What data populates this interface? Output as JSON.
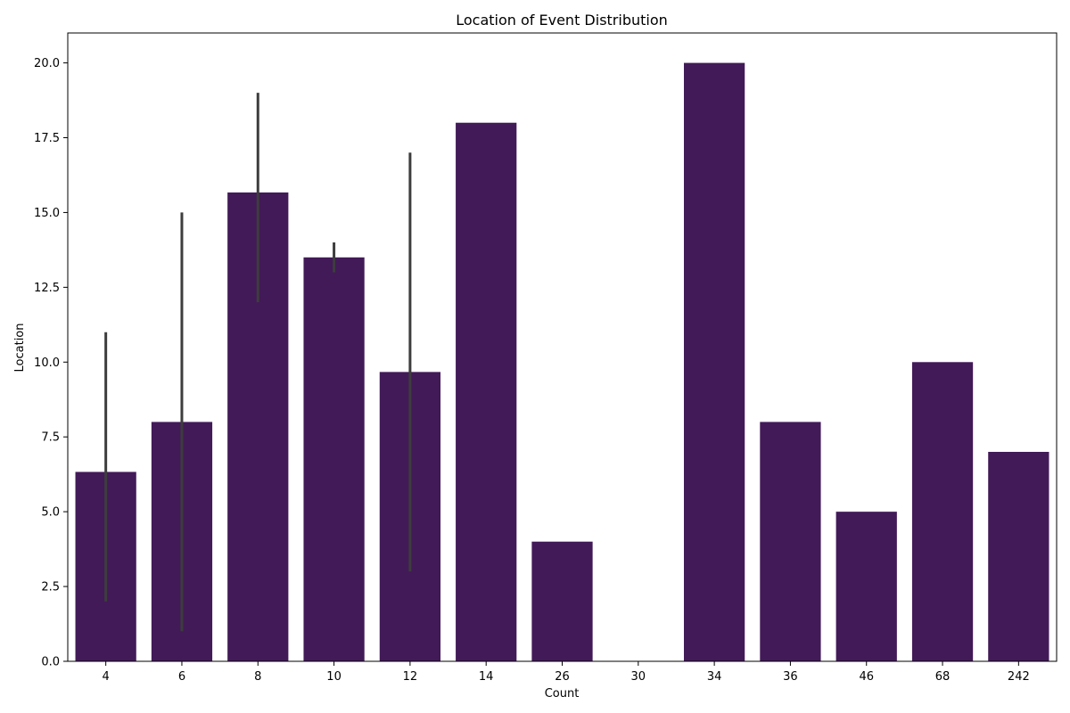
{
  "colors": {
    "bar": "#421A58",
    "error_bar": "#3D3D3D",
    "axis": "#000000",
    "background": "#FFFFFF"
  },
  "chart_data": {
    "type": "bar",
    "title": "Location of Event Distribution",
    "xlabel": "Count",
    "ylabel": "Location",
    "categories": [
      "4",
      "6",
      "8",
      "10",
      "12",
      "14",
      "26",
      "30",
      "34",
      "36",
      "46",
      "68",
      "242"
    ],
    "values": [
      6.33,
      8.0,
      15.67,
      13.5,
      9.67,
      18.0,
      4.0,
      0.0,
      20.0,
      8.0,
      5.0,
      10.0,
      7.0
    ],
    "error_bars": [
      [
        2.0,
        11.0
      ],
      [
        1.0,
        15.0
      ],
      [
        12.0,
        19.0
      ],
      [
        13.0,
        14.0
      ],
      [
        3.0,
        17.0
      ],
      null,
      null,
      null,
      null,
      null,
      null,
      null,
      null
    ],
    "ylim": [
      0,
      21
    ],
    "yticks": [
      "0.0",
      "2.5",
      "5.0",
      "7.5",
      "10.0",
      "12.5",
      "15.0",
      "17.5",
      "20.0"
    ],
    "grid": false,
    "legend": "none"
  }
}
